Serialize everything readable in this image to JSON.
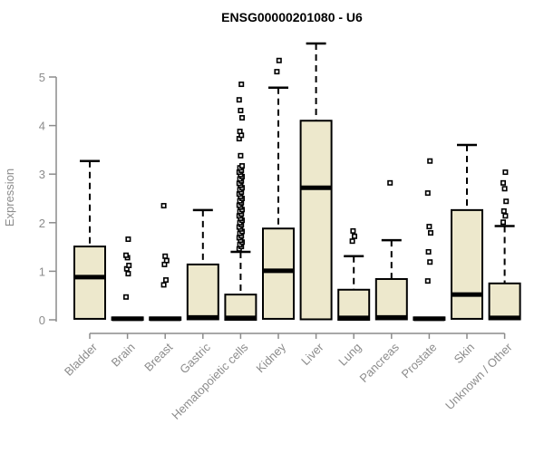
{
  "chart_data": {
    "type": "boxplot",
    "title": "ENSG00000201080 - U6",
    "ylabel": "Expression",
    "xlabel": "",
    "ylim": [
      0,
      5.9
    ],
    "y_ticks": [
      0,
      1,
      2,
      3,
      4,
      5
    ],
    "grid": false,
    "legend": "none",
    "box_fill_color": "#ede8cc",
    "box_stroke_color": "#000000",
    "axis_color": "#8c8c8c",
    "title_color": "#000000",
    "categories": [
      "Bladder",
      "Brain",
      "Breast",
      "Gastric",
      "Hematopoietic cells",
      "Kidney",
      "Liver",
      "Lung",
      "Pancreas",
      "Prostate",
      "Skin",
      "Unknown / Other"
    ],
    "series": [
      {
        "category": "Bladder",
        "q1": 0.02,
        "median": 0.88,
        "q3": 1.51,
        "whisker_low": 0,
        "whisker_high": 3.27,
        "outliers": []
      },
      {
        "category": "Brain",
        "q1": 0,
        "median": 0.02,
        "q3": 0.05,
        "whisker_low": 0,
        "whisker_high": 0.05,
        "outliers": [
          0.47,
          0.95,
          1.05,
          1.12,
          1.28,
          1.33,
          1.66
        ]
      },
      {
        "category": "Breast",
        "q1": 0,
        "median": 0.02,
        "q3": 0.05,
        "whisker_low": 0,
        "whisker_high": 0.05,
        "outliers": [
          0.72,
          0.82,
          1.14,
          1.22,
          1.31,
          2.35
        ]
      },
      {
        "category": "Gastric",
        "q1": 0.01,
        "median": 0.05,
        "q3": 1.14,
        "whisker_low": 0,
        "whisker_high": 2.26,
        "outliers": []
      },
      {
        "category": "Hematopoietic cells",
        "q1": 0,
        "median": 0.04,
        "q3": 0.52,
        "whisker_low": 0,
        "whisker_high": 1.4,
        "outliers": [
          1.46,
          1.51,
          1.55,
          1.6,
          1.64,
          1.69,
          1.73,
          1.78,
          1.82,
          1.87,
          1.91,
          1.96,
          2.0,
          2.05,
          2.09,
          2.14,
          2.18,
          2.23,
          2.27,
          2.32,
          2.36,
          2.41,
          2.45,
          2.5,
          2.54,
          2.59,
          2.63,
          2.68,
          2.72,
          2.77,
          2.81,
          2.86,
          2.9,
          2.95,
          2.99,
          3.04,
          3.08,
          3.13,
          3.17,
          3.38,
          3.73,
          3.8,
          3.88,
          4.16,
          4.31,
          4.53,
          4.85
        ]
      },
      {
        "category": "Kidney",
        "q1": 0.02,
        "median": 1.01,
        "q3": 1.88,
        "whisker_low": 0,
        "whisker_high": 4.78,
        "outliers": [
          5.11,
          5.34
        ]
      },
      {
        "category": "Liver",
        "q1": 0.01,
        "median": 2.72,
        "q3": 4.1,
        "whisker_low": 0,
        "whisker_high": 5.69,
        "outliers": []
      },
      {
        "category": "Lung",
        "q1": 0,
        "median": 0.04,
        "q3": 0.62,
        "whisker_low": 0,
        "whisker_high": 1.31,
        "outliers": [
          1.62,
          1.72,
          1.83
        ]
      },
      {
        "category": "Pancreas",
        "q1": 0.01,
        "median": 0.05,
        "q3": 0.84,
        "whisker_low": 0,
        "whisker_high": 1.64,
        "outliers": [
          2.82
        ]
      },
      {
        "category": "Prostate",
        "q1": 0,
        "median": 0.02,
        "q3": 0.05,
        "whisker_low": 0,
        "whisker_high": 0.05,
        "outliers": [
          0.8,
          1.19,
          1.4,
          1.79,
          1.92,
          2.61,
          3.27
        ]
      },
      {
        "category": "Skin",
        "q1": 0.02,
        "median": 0.52,
        "q3": 2.26,
        "whisker_low": 0,
        "whisker_high": 3.6,
        "outliers": []
      },
      {
        "category": "Unknown / Other",
        "q1": 0.01,
        "median": 0.04,
        "q3": 0.75,
        "whisker_low": 0,
        "whisker_high": 1.93,
        "outliers": [
          2.01,
          2.14,
          2.24,
          2.44,
          2.7,
          2.82,
          3.04
        ]
      }
    ]
  }
}
